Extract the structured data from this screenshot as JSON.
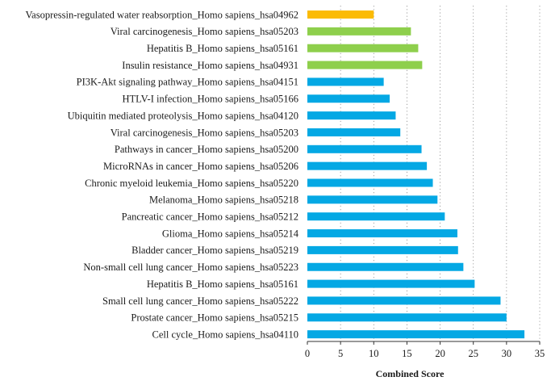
{
  "chart_data": {
    "type": "bar",
    "orientation": "horizontal",
    "title": "",
    "xlabel": "Combined Score",
    "ylabel": "",
    "xlim": [
      0,
      35
    ],
    "xticks": [
      0,
      5,
      10,
      15,
      20,
      25,
      30,
      35
    ],
    "grid": "vertical dotted",
    "legend": "none",
    "categories": [
      "Vasopressin-regulated water reabsorption_Homo sapiens_hsa04962",
      "Viral carcinogenesis_Homo sapiens_hsa05203",
      "Hepatitis B_Homo sapiens_hsa05161",
      "Insulin resistance_Homo sapiens_hsa04931",
      "PI3K-Akt signaling pathway_Homo sapiens_hsa04151",
      "HTLV-I infection_Homo sapiens_hsa05166",
      "Ubiquitin mediated proteolysis_Homo sapiens_hsa04120",
      "Viral carcinogenesis_Homo sapiens_hsa05203",
      "Pathways in cancer_Homo sapiens_hsa05200",
      "MicroRNAs in cancer_Homo sapiens_hsa05206",
      "Chronic myeloid leukemia_Homo sapiens_hsa05220",
      "Melanoma_Homo sapiens_hsa05218",
      "Pancreatic cancer_Homo sapiens_hsa05212",
      "Glioma_Homo sapiens_hsa05214",
      "Bladder cancer_Homo sapiens_hsa05219",
      "Non-small cell lung cancer_Homo sapiens_hsa05223",
      "Hepatitis B_Homo sapiens_hsa05161",
      "Small cell lung cancer_Homo sapiens_hsa05222",
      "Prostate cancer_Homo sapiens_hsa05215",
      "Cell cycle_Homo sapiens_hsa04110"
    ],
    "values": [
      10.0,
      15.6,
      16.7,
      17.3,
      11.5,
      12.4,
      13.3,
      14.0,
      17.2,
      18.0,
      18.9,
      19.6,
      20.7,
      22.6,
      22.7,
      23.5,
      25.2,
      29.1,
      30.0,
      32.7
    ],
    "colors": [
      "#fbbb05",
      "#8ecf4c",
      "#8ecf4c",
      "#8ecf4c",
      "#04a8e4",
      "#04a8e4",
      "#04a8e4",
      "#04a8e4",
      "#04a8e4",
      "#04a8e4",
      "#04a8e4",
      "#04a8e4",
      "#04a8e4",
      "#04a8e4",
      "#04a8e4",
      "#04a8e4",
      "#04a8e4",
      "#04a8e4",
      "#04a8e4",
      "#04a8e4"
    ]
  }
}
